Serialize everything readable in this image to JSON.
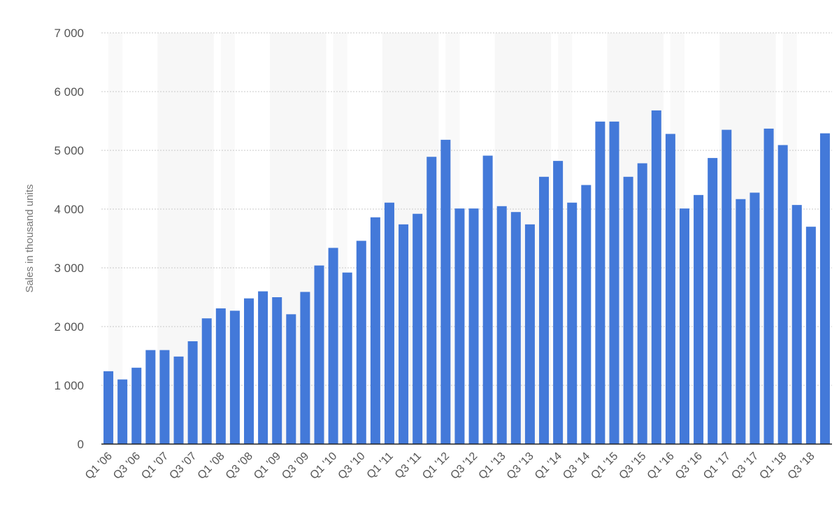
{
  "chart_data": {
    "type": "bar",
    "ylabel": "Sales in thousand units",
    "ylim": [
      0,
      7000
    ],
    "yticks": [
      0,
      1000,
      2000,
      3000,
      4000,
      5000,
      6000,
      7000
    ],
    "ytick_labels": [
      "0",
      "1 000",
      "2 000",
      "3 000",
      "4 000",
      "5 000",
      "6 000",
      "7 000"
    ],
    "grid": true,
    "colors": {
      "bar": "#4379d9",
      "band": "#f7f7f7",
      "grid": "#c8c8c8",
      "axis_text": "#555555"
    },
    "categories": [
      "Q1 '06",
      "Q2 '06",
      "Q3 '06",
      "Q4 '06",
      "Q1 '07",
      "Q2 '07",
      "Q3 '07",
      "Q4 '07",
      "Q1 '08",
      "Q2 '08",
      "Q3 '08",
      "Q4 '08",
      "Q1 '09",
      "Q2 '09",
      "Q3 '09",
      "Q4 '09",
      "Q1 '10",
      "Q2 '10",
      "Q3 '10",
      "Q4 '10",
      "Q1 '11",
      "Q2 '11",
      "Q3 '11",
      "Q4 '11",
      "Q1 '12",
      "Q2 '12",
      "Q3 '12",
      "Q4 '12",
      "Q1 '13",
      "Q2 '13",
      "Q3 '13",
      "Q4 '13",
      "Q1 '14",
      "Q2 '14",
      "Q3 '14",
      "Q4 '14",
      "Q1 '15",
      "Q2 '15",
      "Q3 '15",
      "Q4 '15",
      "Q1 '16",
      "Q2 '16",
      "Q3 '16",
      "Q4 '16",
      "Q1 '17",
      "Q2 '17",
      "Q3 '17",
      "Q4 '17",
      "Q1 '18",
      "Q2 '18",
      "Q3 '18",
      "Q4 '18"
    ],
    "x_labels_shown": [
      "Q1 '06",
      "Q3 '06",
      "Q1 '07",
      "Q3 '07",
      "Q1 '08",
      "Q3 '08",
      "Q1 '09",
      "Q3 '09",
      "Q1 '10",
      "Q3 '10",
      "Q1 '11",
      "Q3 '11",
      "Q1 '12",
      "Q3 '12",
      "Q1 '13",
      "Q3 '13",
      "Q1 '14",
      "Q3 '14",
      "Q1 '15",
      "Q3 '15",
      "Q1 '16",
      "Q3 '16",
      "Q1 '17",
      "Q3 '17",
      "Q1 '18",
      "Q3 '18"
    ],
    "values": [
      1240,
      1100,
      1300,
      1600,
      1600,
      1490,
      1750,
      2140,
      2310,
      2270,
      2480,
      2600,
      2500,
      2210,
      2590,
      3040,
      3340,
      2920,
      3460,
      3860,
      4110,
      3740,
      3920,
      4890,
      5180,
      4010,
      4010,
      4910,
      4050,
      3950,
      3740,
      4550,
      4820,
      4110,
      4410,
      5490,
      5490,
      4550,
      4780,
      5680,
      5280,
      4010,
      4240,
      4870,
      5350,
      4170,
      4280,
      5370,
      5090,
      4070,
      3700,
      5290
    ]
  }
}
